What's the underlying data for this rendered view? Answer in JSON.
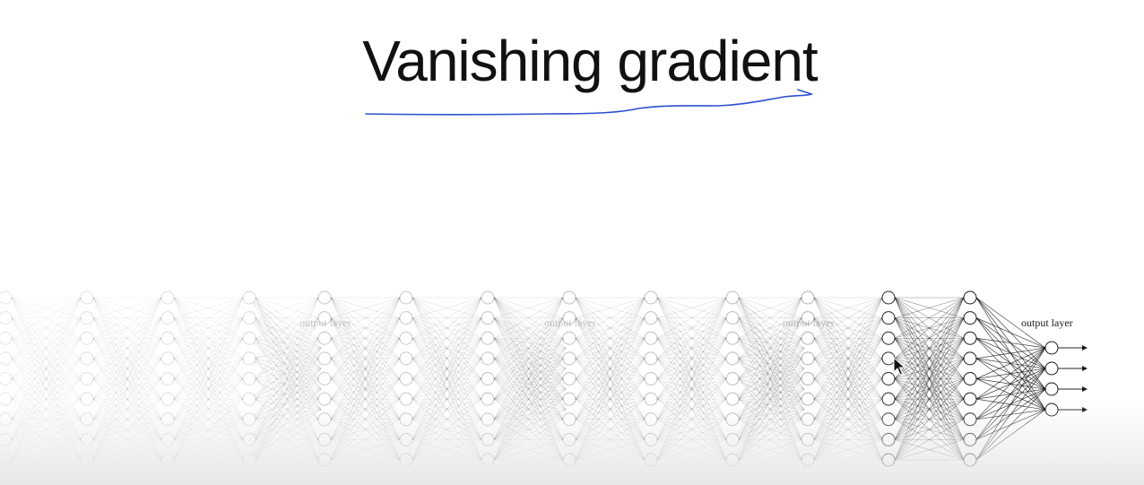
{
  "slide": {
    "title": "Vanishing gradient",
    "underline_color": "#2b4fcf"
  },
  "diagram": {
    "description_type": "stacked copies of a neural network diagram, faded from left to right",
    "output_label": "output layer",
    "hidden_layer_neurons": 9,
    "output_neurons": 4,
    "ink_color": "#000000"
  },
  "cursor": {
    "icon": "mouse-pointer-icon"
  }
}
